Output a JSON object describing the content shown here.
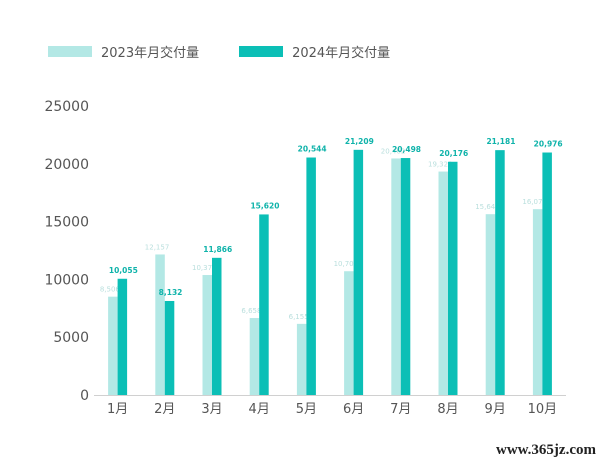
{
  "chart_data": {
    "type": "bar",
    "categories": [
      "1月",
      "2月",
      "3月",
      "4月",
      "5月",
      "6月",
      "7月",
      "8月",
      "9月",
      "10月"
    ],
    "series": [
      {
        "name": "2023年月交付量",
        "color": "#b3e8e5",
        "values": [
          8506,
          12157,
          10378,
          6658,
          6155,
          10707,
          20462,
          19329,
          15641,
          16074
        ]
      },
      {
        "name": "2024年月交付量",
        "color": "#0bbfb6",
        "values": [
          10055,
          8132,
          11866,
          15620,
          20544,
          21209,
          20498,
          20176,
          21181,
          20976
        ]
      }
    ],
    "yticks": [
      "0",
      "5000",
      "10000",
      "15000",
      "20000",
      "25000"
    ],
    "ylim": [
      0,
      25000
    ],
    "data_labels": [
      [
        "8,506",
        "12,157",
        "10,378",
        "6,658",
        "6,155",
        "10,707",
        "20,462",
        "19,329",
        "15,641",
        "16,074"
      ],
      [
        "10,055",
        "8,132",
        "11,866",
        "15,620",
        "20,544",
        "21,209",
        "20,498",
        "20,176",
        "21,181",
        "20,976"
      ]
    ],
    "grid": false,
    "legend_position": "top-left"
  },
  "watermark": "www.365jz.com"
}
